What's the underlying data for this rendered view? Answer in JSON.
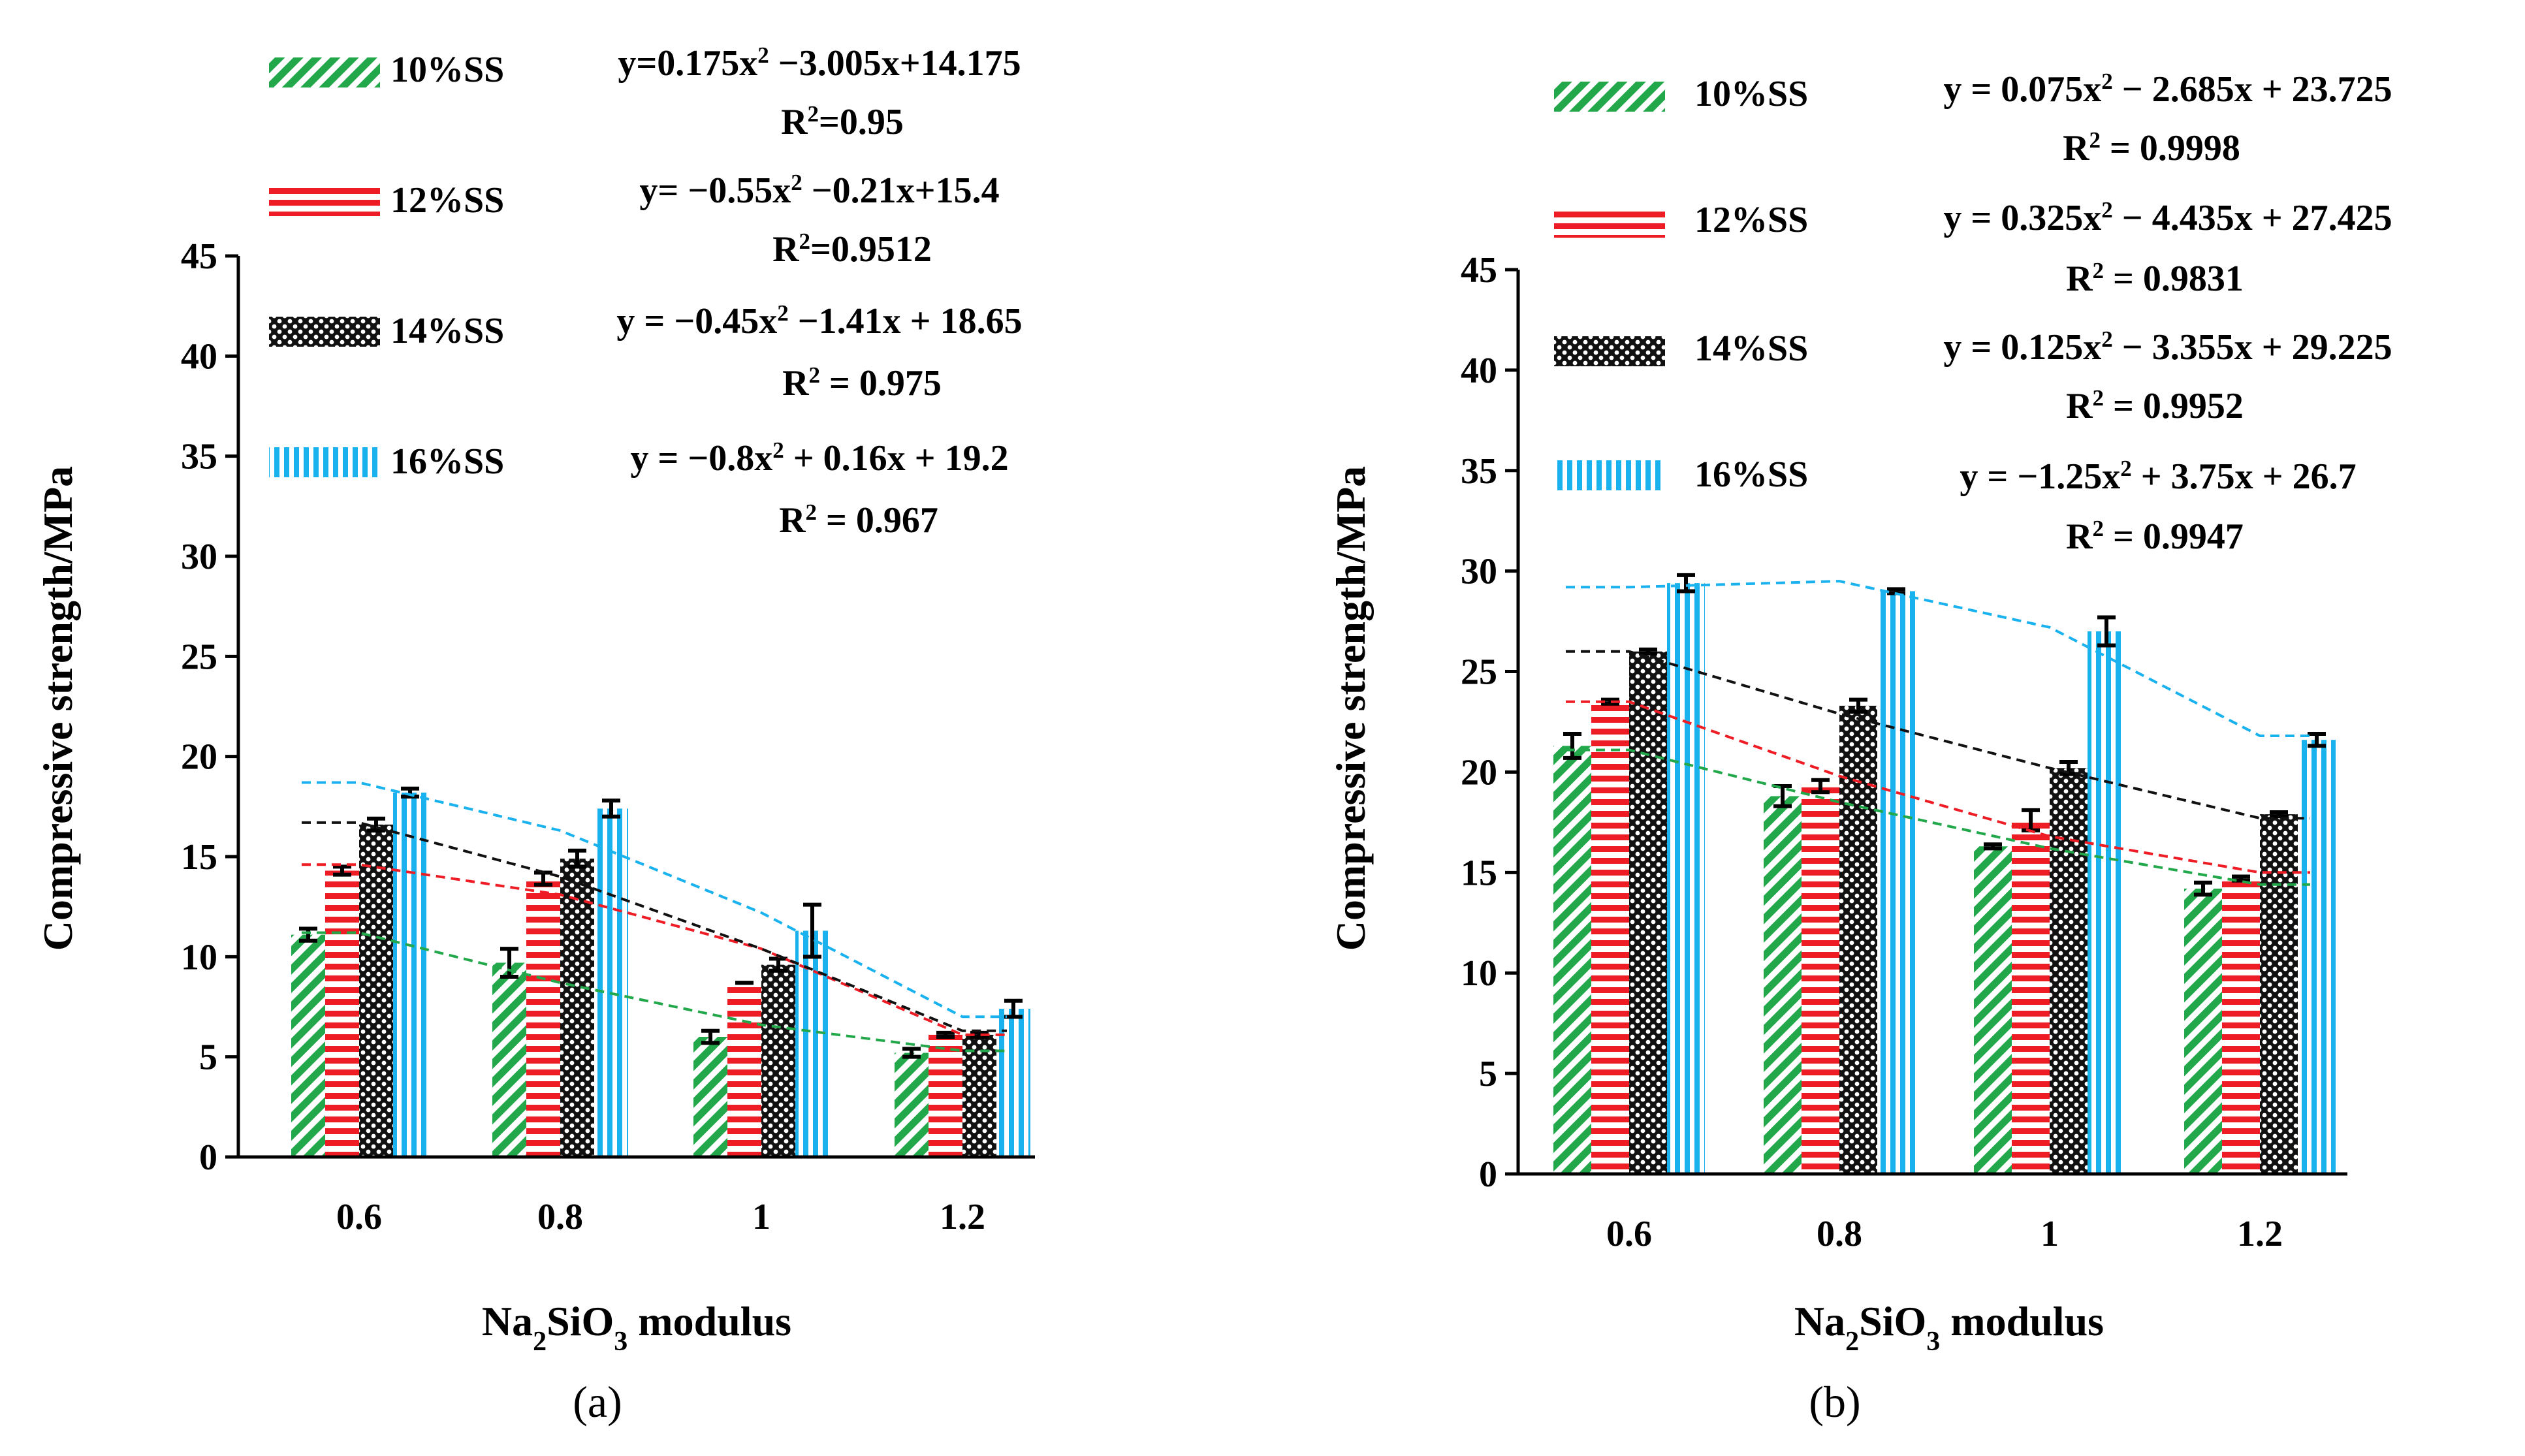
{
  "chart_data": [
    {
      "panel_label": "(a)",
      "type": "bar",
      "categories": [
        "0.6",
        "0.8",
        "1",
        "1.2"
      ],
      "ylabel": "Compressive strength/MPa",
      "xlabel_parts": [
        "Na",
        "2",
        "SiO",
        "3",
        " modulus"
      ],
      "ylim": [
        0,
        45
      ],
      "yticks": [
        "0",
        "5",
        "10",
        "15",
        "20",
        "25",
        "30",
        "35",
        "40",
        "45"
      ],
      "grid": false,
      "legend_position": "top",
      "series": [
        {
          "name": "10%SS",
          "pattern": "diagonal",
          "color": "#22a84a",
          "values": [
            11.1,
            9.7,
            6.0,
            5.2
          ],
          "errors": [
            0.3,
            0.7,
            0.3,
            0.2
          ],
          "equation_parts": [
            "y=0.175x",
            "2",
            " −3.005x+14.175"
          ],
          "r2_parts": [
            "R",
            "2",
            "=0.95"
          ]
        },
        {
          "name": "12%SS",
          "pattern": "horizontal",
          "color": "#ee1c24",
          "values": [
            14.3,
            13.9,
            8.7,
            6.1
          ],
          "errors": [
            0.2,
            0.3,
            0.0,
            0.1
          ],
          "equation_parts": [
            "y= −0.55x",
            "2",
            " −0.21x+15.4"
          ],
          "r2_parts": [
            "R",
            "2",
            "=0.9512"
          ]
        },
        {
          "name": "14%SS",
          "pattern": "checker",
          "color": "#111111",
          "values": [
            16.6,
            14.9,
            9.6,
            6.1
          ],
          "errors": [
            0.3,
            0.4,
            0.3,
            0.1
          ],
          "equation_parts": [
            "y = −0.45x",
            "2",
            " −1.41x + 18.65"
          ],
          "r2_parts": [
            "R",
            "2",
            " = 0.975"
          ]
        },
        {
          "name": "16%SS",
          "pattern": "vertical",
          "color": "#19b2ee",
          "values": [
            18.2,
            17.4,
            11.3,
            7.4
          ],
          "errors": [
            0.2,
            0.4,
            1.3,
            0.4
          ],
          "equation_parts": [
            "y = −0.8x",
            "2",
            " + 0.16x + 19.2"
          ],
          "r2_parts": [
            "R",
            "2",
            " = 0.967"
          ]
        }
      ],
      "trendlines": [
        {
          "series": "10%SS",
          "color": "#22a84a",
          "y": [
            11.2,
            8.7,
            6.6,
            5.3
          ]
        },
        {
          "series": "12%SS",
          "color": "#ee1c24",
          "y": [
            14.6,
            13.1,
            10.4,
            6.1
          ]
        },
        {
          "series": "14%SS",
          "color": "#111111",
          "y": [
            16.7,
            14.0,
            10.4,
            6.3
          ]
        },
        {
          "series": "16%SS",
          "color": "#19b2ee",
          "y": [
            18.7,
            16.3,
            12.2,
            7.0
          ]
        }
      ]
    },
    {
      "panel_label": "(b)",
      "type": "bar",
      "categories": [
        "0.6",
        "0.8",
        "1",
        "1.2"
      ],
      "ylabel": "Compressive strength/MPa",
      "xlabel_parts": [
        "Na",
        "2",
        "SiO",
        "3",
        " modulus"
      ],
      "ylim": [
        0,
        45
      ],
      "yticks": [
        "0",
        "5",
        "10",
        "15",
        "20",
        "25",
        "30",
        "35",
        "40",
        "45"
      ],
      "grid": false,
      "legend_position": "top",
      "series": [
        {
          "name": "10%SS",
          "pattern": "diagonal",
          "color": "#22a84a",
          "values": [
            21.3,
            18.8,
            16.3,
            14.2
          ],
          "errors": [
            0.6,
            0.5,
            0.1,
            0.3
          ],
          "equation_parts": [
            "y = 0.075x",
            "2",
            " − 2.685x + 23.725"
          ],
          "r2_parts": [
            "R",
            "2",
            " = 0.9998"
          ]
        },
        {
          "name": "12%SS",
          "pattern": "horizontal",
          "color": "#ee1c24",
          "values": [
            23.5,
            19.3,
            17.6,
            14.7
          ],
          "errors": [
            0.1,
            0.3,
            0.5,
            0.1
          ],
          "equation_parts": [
            "y = 0.325x",
            "2",
            " − 4.435x + 27.425"
          ],
          "r2_parts": [
            "R",
            "2",
            " = 0.9831"
          ]
        },
        {
          "name": "14%SS",
          "pattern": "checker",
          "color": "#111111",
          "values": [
            26.0,
            23.3,
            20.2,
            17.9
          ],
          "errors": [
            0.1,
            0.3,
            0.3,
            0.1
          ],
          "equation_parts": [
            "y = 0.125x",
            "2",
            " − 3.355x + 29.225"
          ],
          "r2_parts": [
            "R",
            "2",
            " = 0.9952"
          ]
        },
        {
          "name": "16%SS",
          "pattern": "vertical",
          "color": "#19b2ee",
          "values": [
            29.4,
            29.0,
            27.0,
            21.6
          ],
          "errors": [
            0.4,
            0.1,
            0.7,
            0.3
          ],
          "equation_parts": [
            "y = −1.25x",
            "2",
            " + 3.75x + 26.7"
          ],
          "r2_parts": [
            "R",
            "2",
            " = 0.9947"
          ]
        }
      ],
      "trendlines": [
        {
          "series": "10%SS",
          "color": "#22a84a",
          "y": [
            21.1,
            18.5,
            16.2,
            14.4
          ]
        },
        {
          "series": "12%SS",
          "color": "#ee1c24",
          "y": [
            23.5,
            19.8,
            16.8,
            15.0
          ]
        },
        {
          "series": "14%SS",
          "color": "#111111",
          "y": [
            26.0,
            22.9,
            20.2,
            17.7
          ]
        },
        {
          "series": "16%SS",
          "color": "#19b2ee",
          "y": [
            29.2,
            29.5,
            27.2,
            21.8
          ]
        }
      ]
    }
  ]
}
